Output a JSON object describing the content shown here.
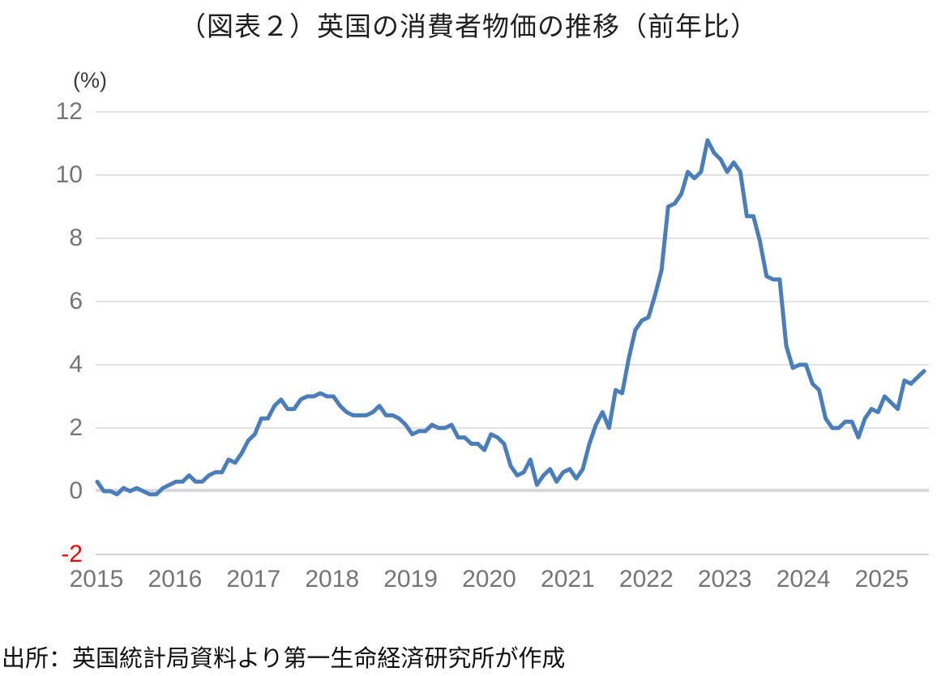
{
  "title": "（図表２）英国の消費者物価の推移（前年比）",
  "unit_label": "(%)",
  "source_note": "出所：英国統計局資料より第一生命経済研究所が作成",
  "colors": {
    "line": "#4a7ebb",
    "gridline": "#d9d9d9",
    "zero_line": "#d9d9d9",
    "axis_line": "#c7c7c7",
    "tick_text": "#757575",
    "negative_tick_text": "#ff0000",
    "title_text": "#1f1f1f"
  },
  "chart_data": {
    "type": "line",
    "title": "（図表２）英国の消費者物価の推移（前年比）",
    "ylabel": "(%)",
    "xlabel": "",
    "ylim": [
      -2,
      12
    ],
    "grid": true,
    "legend_position": "none",
    "y_ticks": [
      12,
      10,
      8,
      6,
      4,
      2,
      0,
      -2
    ],
    "x_tick_labels": [
      "2015",
      "2016",
      "2017",
      "2018",
      "2019",
      "2020",
      "2021",
      "2022",
      "2023",
      "2024",
      "2025"
    ],
    "x_start_month": "2015-01",
    "x_end_month": "2025-07",
    "series": [
      {
        "name": "英国の消費者物価（前年比）",
        "color": "#4a7ebb",
        "values": [
          0.3,
          0.0,
          0.0,
          -0.1,
          0.1,
          0.0,
          0.1,
          0.0,
          -0.1,
          -0.1,
          0.1,
          0.2,
          0.3,
          0.3,
          0.5,
          0.3,
          0.3,
          0.5,
          0.6,
          0.6,
          1.0,
          0.9,
          1.2,
          1.6,
          1.8,
          2.3,
          2.3,
          2.7,
          2.9,
          2.6,
          2.6,
          2.9,
          3.0,
          3.0,
          3.1,
          3.0,
          3.0,
          2.7,
          2.5,
          2.4,
          2.4,
          2.4,
          2.5,
          2.7,
          2.4,
          2.4,
          2.3,
          2.1,
          1.8,
          1.9,
          1.9,
          2.1,
          2.0,
          2.0,
          2.1,
          1.7,
          1.7,
          1.5,
          1.5,
          1.3,
          1.8,
          1.7,
          1.5,
          0.8,
          0.5,
          0.6,
          1.0,
          0.2,
          0.5,
          0.7,
          0.3,
          0.6,
          0.7,
          0.4,
          0.7,
          1.5,
          2.1,
          2.5,
          2.0,
          3.2,
          3.1,
          4.2,
          5.1,
          5.4,
          5.5,
          6.2,
          7.0,
          9.0,
          9.1,
          9.4,
          10.1,
          9.9,
          10.1,
          11.1,
          10.7,
          10.5,
          10.1,
          10.4,
          10.1,
          8.7,
          8.7,
          7.9,
          6.8,
          6.7,
          6.7,
          4.6,
          3.9,
          4.0,
          4.0,
          3.4,
          3.2,
          2.3,
          2.0,
          2.0,
          2.2,
          2.2,
          1.7,
          2.3,
          2.6,
          2.5,
          3.0,
          2.8,
          2.6,
          3.5,
          3.4,
          3.6,
          3.8
        ]
      }
    ]
  }
}
